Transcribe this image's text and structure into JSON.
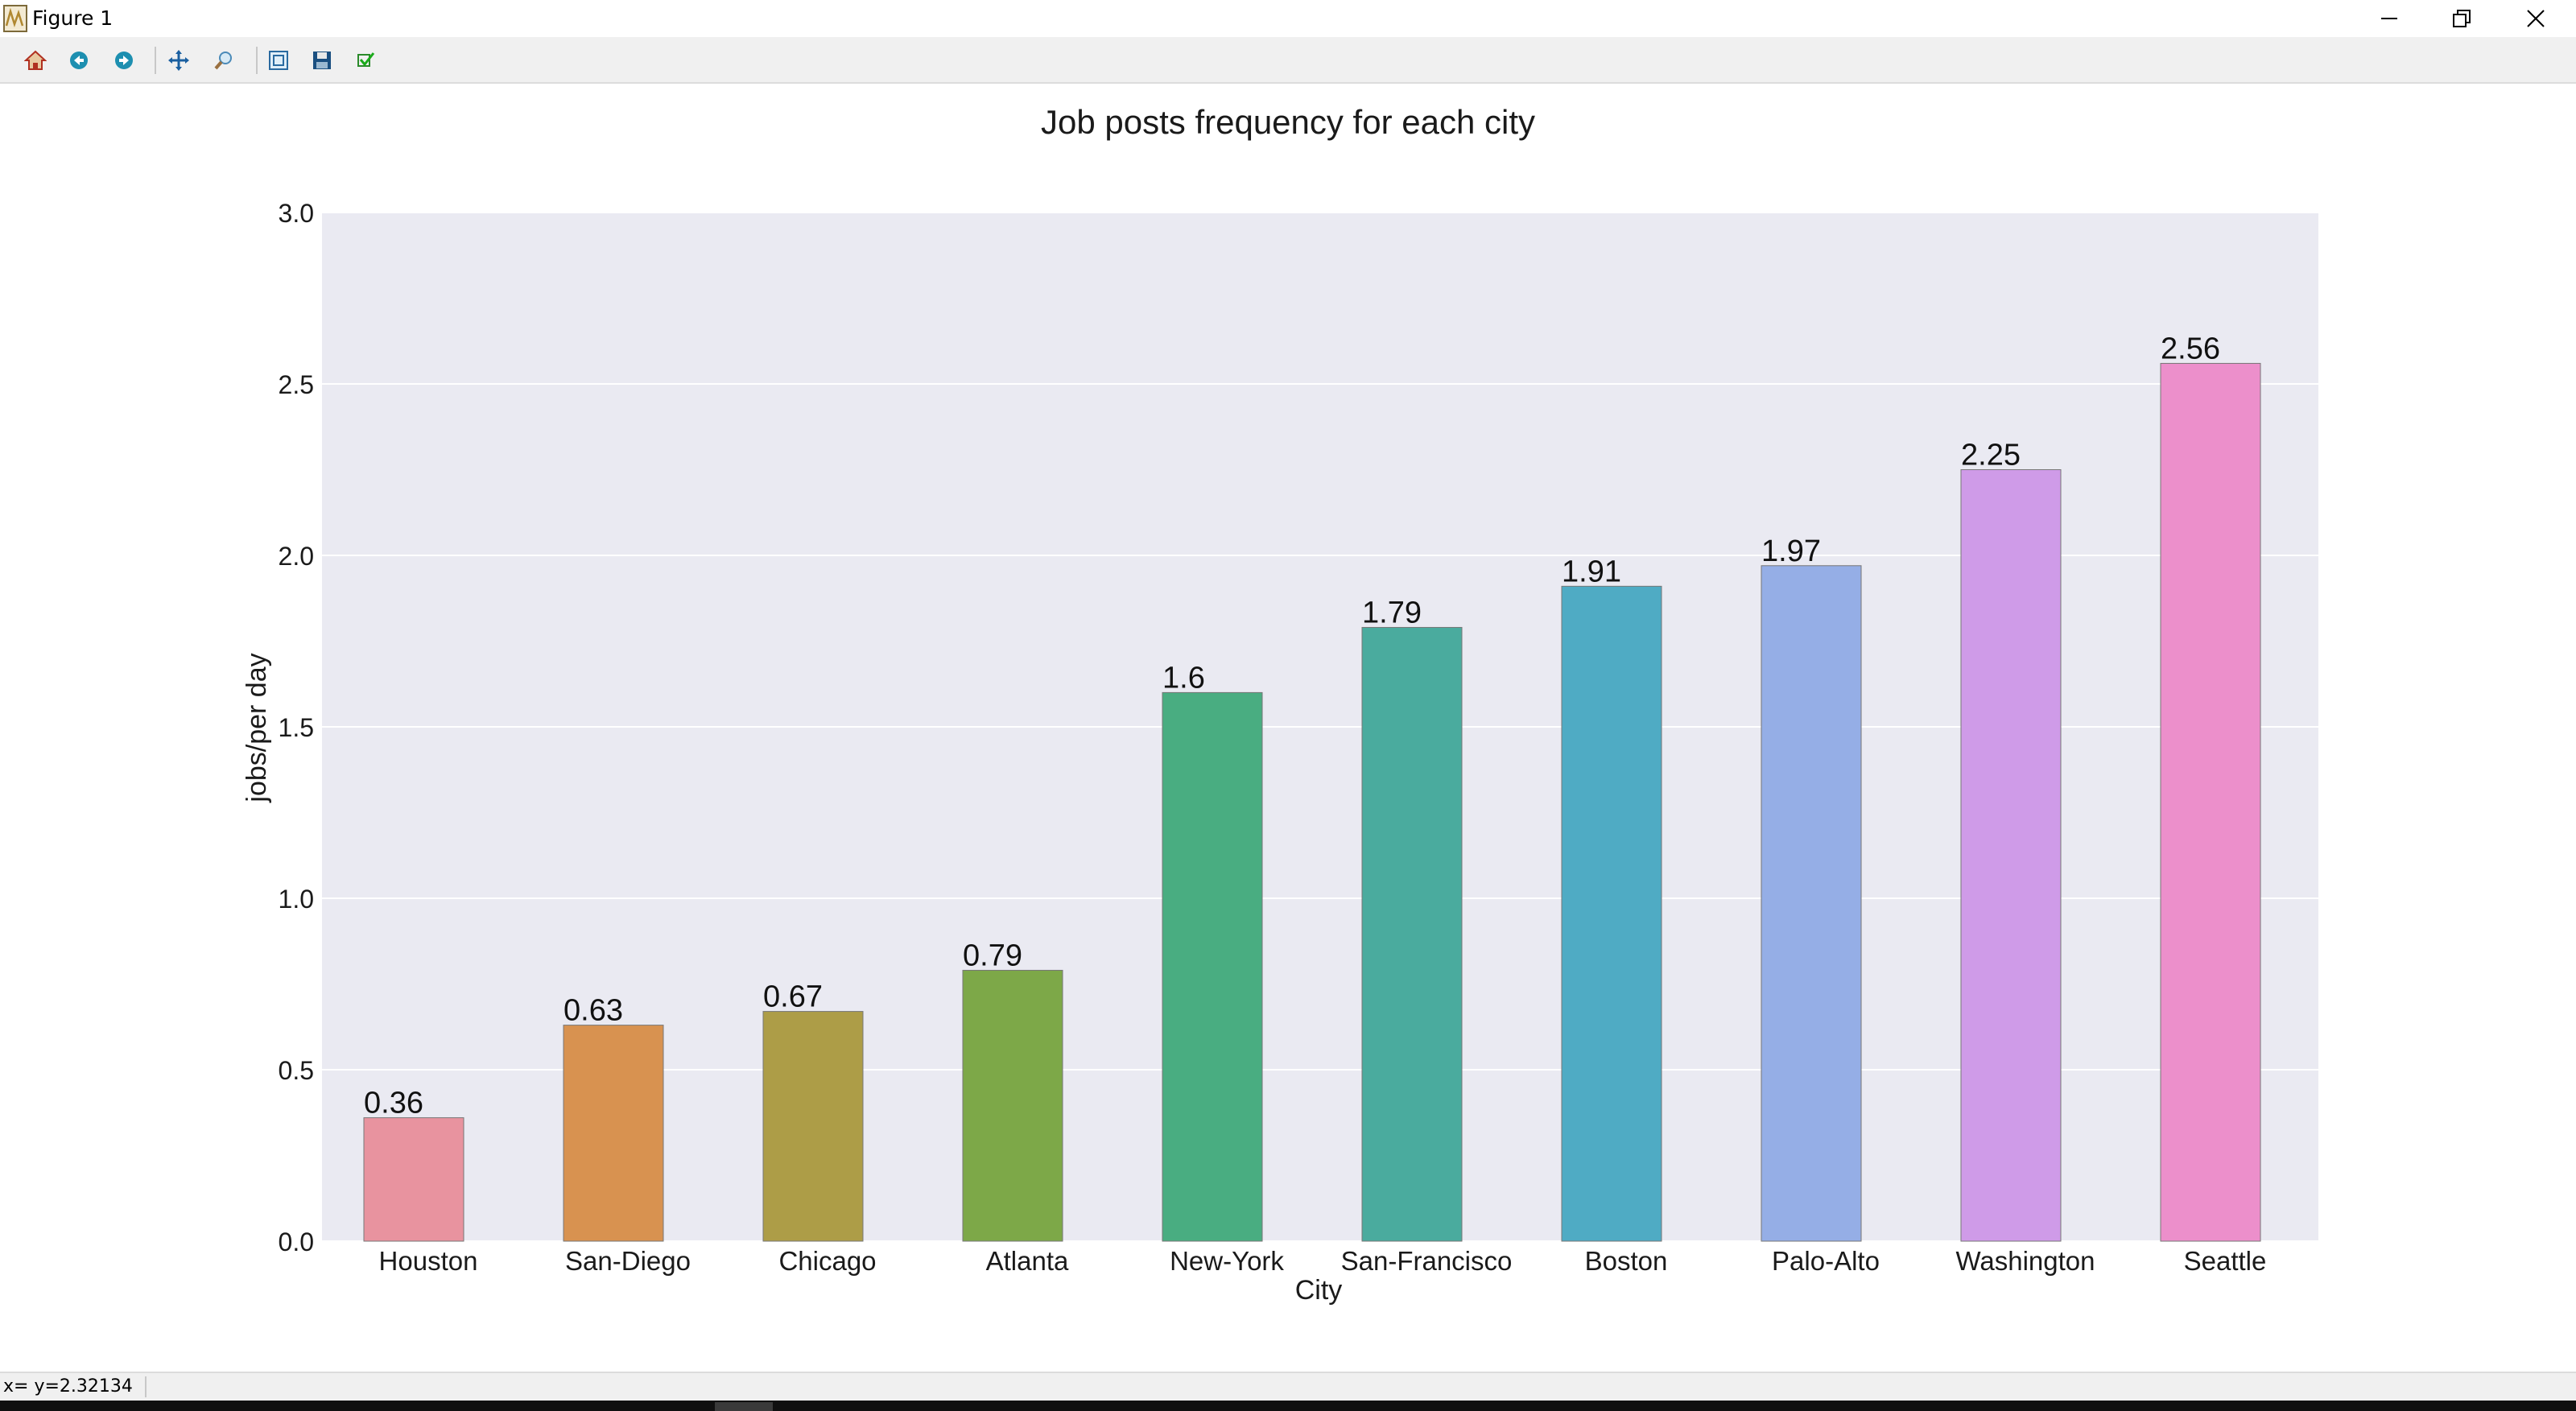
{
  "window": {
    "title": "Figure 1",
    "icon": "matplotlib-figure-icon"
  },
  "toolbar": {
    "buttons": [
      {
        "name": "home-button",
        "icon": "home-icon"
      },
      {
        "name": "back-button",
        "icon": "back-arrow-icon"
      },
      {
        "name": "forward-button",
        "icon": "forward-arrow-icon"
      },
      {
        "name": "pan-button",
        "icon": "move-cross-icon"
      },
      {
        "name": "zoom-button",
        "icon": "zoom-icon"
      },
      {
        "name": "configure-subplots-button",
        "icon": "subplots-icon"
      },
      {
        "name": "save-button",
        "icon": "floppy-disk-icon"
      },
      {
        "name": "edit-axes-button",
        "icon": "checkmark-icon"
      }
    ]
  },
  "status": {
    "text": "x= y=2.32134"
  },
  "chart_data": {
    "type": "bar",
    "title": "Job posts frequency for each city",
    "xlabel": "City",
    "ylabel": "jobs/per day",
    "categories": [
      "Houston",
      "San-Diego",
      "Chicago",
      "Atlanta",
      "New-York",
      "San-Francisco",
      "Boston",
      "Palo-Alto",
      "Washington",
      "Seattle"
    ],
    "values": [
      0.36,
      0.63,
      0.67,
      0.79,
      1.6,
      1.79,
      1.91,
      1.97,
      2.25,
      2.56
    ],
    "value_labels": [
      "0.36",
      "0.63",
      "0.67",
      "0.79",
      "1.6",
      "1.79",
      "1.91",
      "1.97",
      "2.25",
      "2.56"
    ],
    "ylim": [
      0,
      3
    ],
    "yticks": [
      0.0,
      0.5,
      1.0,
      1.5,
      2.0,
      2.5,
      3.0
    ],
    "ytick_labels": [
      "0.0",
      "0.5",
      "1.0",
      "1.5",
      "2.0",
      "2.5",
      "3.0"
    ],
    "grid": true,
    "colors": [
      "#e8939f",
      "#d89250",
      "#ad9d47",
      "#7da848",
      "#49ad81",
      "#4aab9e",
      "#4fabc4",
      "#95aee6",
      "#cf9be8",
      "#ec8fcb"
    ],
    "background": "#eaeaf2"
  }
}
